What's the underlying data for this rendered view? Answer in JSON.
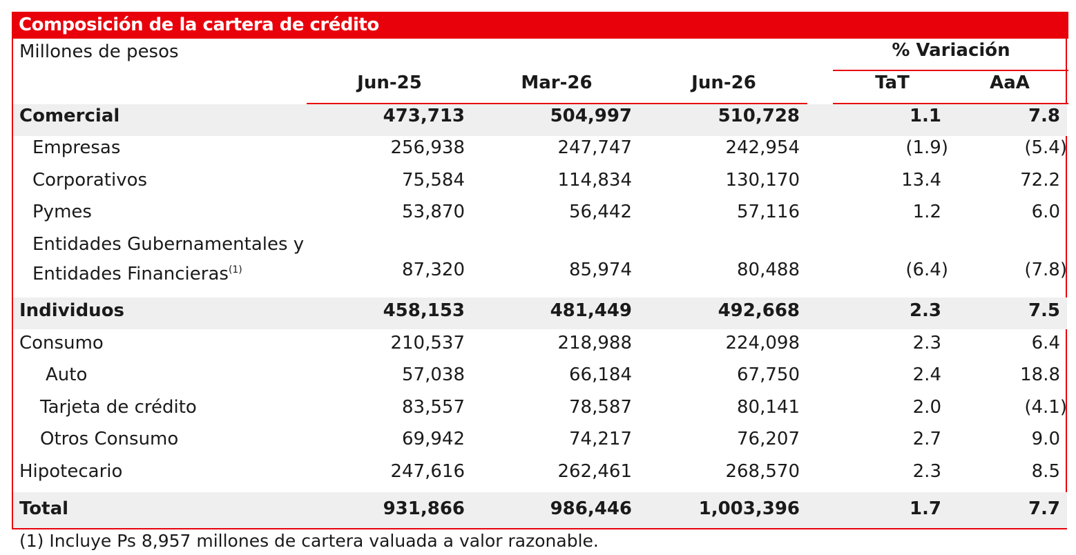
{
  "table": {
    "title": "Composición de la cartera de crédito",
    "units": "Millones de pesos",
    "variation_header": "% Variación",
    "columns": [
      "Jun-25",
      "Mar-26",
      "Jun-26",
      "TaT",
      "AaA"
    ],
    "rows": [
      {
        "label": "Comercial",
        "values": [
          "473,713",
          "504,997",
          "510,728",
          "1.1",
          "7.8"
        ]
      },
      {
        "label": "Empresas",
        "values": [
          "256,938",
          "247,747",
          "242,954",
          "(1.9)",
          "(5.4)"
        ]
      },
      {
        "label": "Corporativos",
        "values": [
          "75,584",
          "114,834",
          "130,170",
          "13.4",
          "72.2"
        ]
      },
      {
        "label": "Pymes",
        "values": [
          "53,870",
          "56,442",
          "57,116",
          "1.2",
          "6.0"
        ]
      },
      {
        "label_line1": "Entidades Gubernamentales y",
        "label_line2": "Entidades Financieras",
        "footnote_mark": "(1)",
        "values": [
          "87,320",
          "85,974",
          "80,488",
          "(6.4)",
          "(7.8)"
        ]
      },
      {
        "label": "Individuos",
        "values": [
          "458,153",
          "481,449",
          "492,668",
          "2.3",
          "7.5"
        ]
      },
      {
        "label": "Consumo",
        "values": [
          "210,537",
          "218,988",
          "224,098",
          "2.3",
          "6.4"
        ]
      },
      {
        "label": "Auto",
        "values": [
          "57,038",
          "66,184",
          "67,750",
          "2.4",
          "18.8"
        ]
      },
      {
        "label": "Tarjeta de crédito",
        "values": [
          "83,557",
          "78,587",
          "80,141",
          "2.0",
          "(4.1)"
        ]
      },
      {
        "label": "Otros Consumo",
        "values": [
          "69,942",
          "74,217",
          "76,207",
          "2.7",
          "9.0"
        ]
      },
      {
        "label": "Hipotecario",
        "values": [
          "247,616",
          "262,461",
          "268,570",
          "2.3",
          "8.5"
        ]
      },
      {
        "label": "Total",
        "values": [
          "931,866",
          "986,446",
          "1,003,396",
          "1.7",
          "7.7"
        ]
      }
    ],
    "footnote": "(1) Incluye Ps 8,957 millones de cartera valuada a valor razonable."
  },
  "colors": {
    "accent": "#e8000b",
    "shade": "#efefef"
  }
}
